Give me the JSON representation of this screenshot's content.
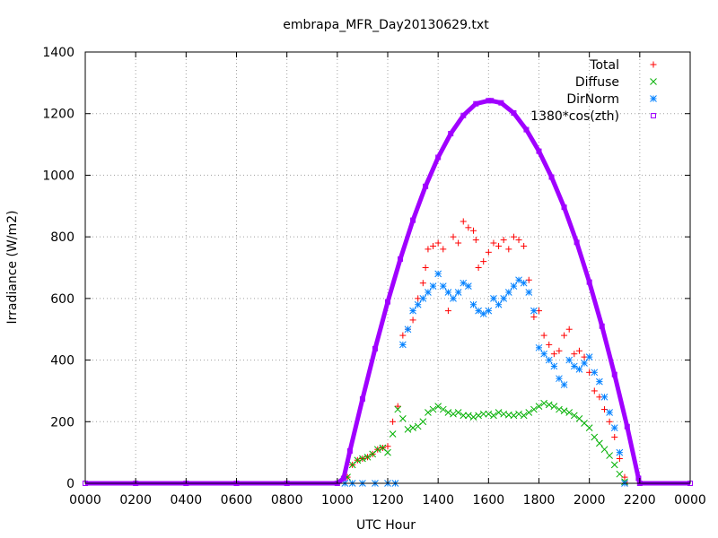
{
  "chart_data": {
    "type": "scatter",
    "title": "embrapa_MFR_Day20130629.txt",
    "xlabel": "UTC Hour",
    "ylabel": "Irradiance (W/m2)",
    "xlim": [
      0,
      24
    ],
    "ylim": [
      0,
      1400
    ],
    "xticks": [
      0,
      2,
      4,
      6,
      8,
      10,
      12,
      14,
      16,
      18,
      20,
      22,
      24
    ],
    "xtick_labels": [
      "0000",
      "0200",
      "0400",
      "0600",
      "0800",
      "1000",
      "1200",
      "1400",
      "1600",
      "1800",
      "2000",
      "2200",
      "0000"
    ],
    "yticks": [
      0,
      200,
      400,
      600,
      800,
      1000,
      1200,
      1400
    ],
    "ytick_labels": [
      "0",
      "200",
      "400",
      "600",
      "800",
      "1000",
      "1200",
      "1400"
    ],
    "grid": true,
    "legend_position": "top-right",
    "series": [
      {
        "name": "Total",
        "color": "#ff0000",
        "marker": "plus",
        "x": [
          10.4,
          10.6,
          10.8,
          11.0,
          11.2,
          11.4,
          11.6,
          11.8,
          12.0,
          12.2,
          12.4,
          12.6,
          12.8,
          13.0,
          13.2,
          13.4,
          13.5,
          13.6,
          13.8,
          14.0,
          14.2,
          14.4,
          14.6,
          14.8,
          15.0,
          15.2,
          15.4,
          15.5,
          15.6,
          15.8,
          16.0,
          16.2,
          16.4,
          16.6,
          16.8,
          17.0,
          17.2,
          17.4,
          17.6,
          17.8,
          18.0,
          18.2,
          18.4,
          18.6,
          18.8,
          19.0,
          19.2,
          19.4,
          19.6,
          19.8,
          20.0,
          20.2,
          20.4,
          20.6,
          20.8,
          21.0,
          21.2,
          21.4,
          21.5
        ],
        "y": [
          20,
          60,
          75,
          80,
          85,
          95,
          110,
          115,
          120,
          200,
          250,
          480,
          500,
          530,
          600,
          650,
          700,
          760,
          770,
          780,
          760,
          560,
          800,
          780,
          850,
          830,
          820,
          790,
          700,
          720,
          750,
          780,
          770,
          790,
          760,
          800,
          790,
          770,
          660,
          540,
          560,
          480,
          450,
          420,
          430,
          480,
          500,
          420,
          430,
          410,
          360,
          300,
          280,
          240,
          200,
          150,
          80,
          20,
          0
        ]
      },
      {
        "name": "Diffuse",
        "color": "#00b000",
        "marker": "cross",
        "x": [
          10.4,
          10.6,
          10.8,
          11.0,
          11.2,
          11.4,
          11.6,
          11.8,
          12.0,
          12.2,
          12.4,
          12.6,
          12.8,
          13.0,
          13.2,
          13.4,
          13.6,
          13.8,
          14.0,
          14.2,
          14.4,
          14.6,
          14.8,
          15.0,
          15.2,
          15.4,
          15.6,
          15.8,
          16.0,
          16.2,
          16.4,
          16.6,
          16.8,
          17.0,
          17.2,
          17.4,
          17.6,
          17.8,
          18.0,
          18.2,
          18.4,
          18.6,
          18.8,
          19.0,
          19.2,
          19.4,
          19.6,
          19.8,
          20.0,
          20.2,
          20.4,
          20.6,
          20.8,
          21.0,
          21.2,
          21.4
        ],
        "y": [
          20,
          60,
          75,
          80,
          85,
          95,
          110,
          115,
          100,
          160,
          240,
          210,
          175,
          180,
          185,
          200,
          230,
          240,
          250,
          240,
          230,
          225,
          230,
          220,
          220,
          215,
          220,
          225,
          225,
          220,
          230,
          225,
          222,
          220,
          225,
          220,
          230,
          240,
          250,
          260,
          255,
          250,
          240,
          235,
          230,
          220,
          210,
          195,
          180,
          150,
          130,
          110,
          90,
          60,
          30,
          5
        ]
      },
      {
        "name": "DirNorm",
        "color": "#0080ff",
        "marker": "star",
        "x": [
          10.3,
          10.6,
          11.0,
          11.5,
          12.0,
          12.3,
          12.6,
          12.8,
          13.0,
          13.2,
          13.4,
          13.6,
          13.8,
          14.0,
          14.2,
          14.4,
          14.6,
          14.8,
          15.0,
          15.2,
          15.4,
          15.6,
          15.8,
          16.0,
          16.2,
          16.4,
          16.6,
          16.8,
          17.0,
          17.2,
          17.4,
          17.6,
          17.8,
          18.0,
          18.2,
          18.4,
          18.6,
          18.8,
          19.0,
          19.2,
          19.4,
          19.6,
          19.8,
          20.0,
          20.2,
          20.4,
          20.6,
          20.8,
          21.0,
          21.2,
          21.4
        ],
        "y": [
          0,
          0,
          0,
          0,
          0,
          0,
          450,
          500,
          560,
          580,
          600,
          620,
          640,
          680,
          640,
          620,
          600,
          620,
          650,
          640,
          580,
          560,
          550,
          560,
          600,
          580,
          600,
          620,
          640,
          660,
          650,
          620,
          560,
          440,
          420,
          400,
          380,
          340,
          320,
          400,
          380,
          370,
          390,
          410,
          360,
          330,
          280,
          230,
          180,
          100,
          0
        ]
      },
      {
        "name": "1380*cos(zth)",
        "color": "#a000ff",
        "marker": "square",
        "x": [
          0,
          2,
          4,
          6,
          8,
          10,
          10.25,
          10.5,
          11,
          11.5,
          12,
          12.5,
          13,
          13.5,
          14,
          14.5,
          15,
          15.5,
          16,
          16.1,
          16.5,
          17,
          17.5,
          18,
          18.5,
          19,
          19.5,
          20,
          20.5,
          21,
          21.5,
          21.95,
          22,
          24
        ],
        "y": [
          0,
          0,
          0,
          0,
          0,
          0,
          16,
          105,
          274,
          437,
          589,
          728,
          854,
          964,
          1058,
          1135,
          1194,
          1232,
          1242,
          1242,
          1235,
          1202,
          1148,
          1078,
          994,
          896,
          782,
          653,
          510,
          353,
          184,
          16,
          0,
          0
        ]
      }
    ]
  }
}
